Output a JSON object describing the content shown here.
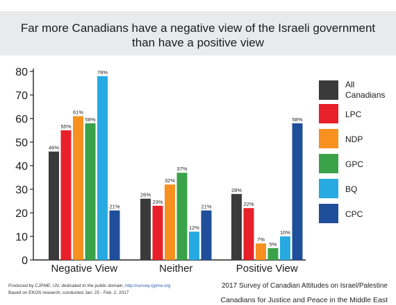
{
  "title_line1": "Far more Canadians have a negative view of the Israeli government",
  "title_line2": "than have a positive view",
  "chart_data": {
    "type": "bar",
    "title": "Far more Canadians have a negative view of the Israeli government than have a positive view",
    "categories": [
      "Negative View",
      "Neither",
      "Positive View"
    ],
    "series": [
      {
        "name": "All Canadians",
        "color": "#3a3a3a",
        "values": [
          46,
          26,
          28
        ]
      },
      {
        "name": "LPC",
        "color": "#e8202a",
        "values": [
          55,
          23,
          22
        ]
      },
      {
        "name": "NDP",
        "color": "#f7901e",
        "values": [
          61,
          32,
          7
        ]
      },
      {
        "name": "GPC",
        "color": "#3aa34a",
        "values": [
          58,
          37,
          5
        ]
      },
      {
        "name": "BQ",
        "color": "#27aae1",
        "values": [
          78,
          12,
          10
        ]
      },
      {
        "name": "CPC",
        "color": "#1f4e9a",
        "values": [
          21,
          21,
          58
        ]
      }
    ],
    "value_suffix": "%",
    "ylim": [
      0,
      80
    ],
    "yticks": [
      0,
      10,
      20,
      30,
      40,
      50,
      60,
      70,
      80
    ],
    "grid": false,
    "legend": "right"
  },
  "legend_labels": {
    "all_line1": "All",
    "all_line2": "Canadians",
    "lpc": "LPC",
    "ndp": "NDP",
    "gpc": "GPC",
    "bq": "BQ",
    "cpc": "CPC"
  },
  "footer": {
    "produced": "Produced by CJPME, IJV, dedicated to the public domain, ",
    "link": "http://survey.cjpme.org",
    "based": "Based on EKOS research, conducted Jan. 25 - Feb. 2, 2017",
    "survey": "2017 Survey of Canadian Attitudes on Israel/Palestine",
    "org": "Canadians for Justice and Peace in the Middle East"
  }
}
